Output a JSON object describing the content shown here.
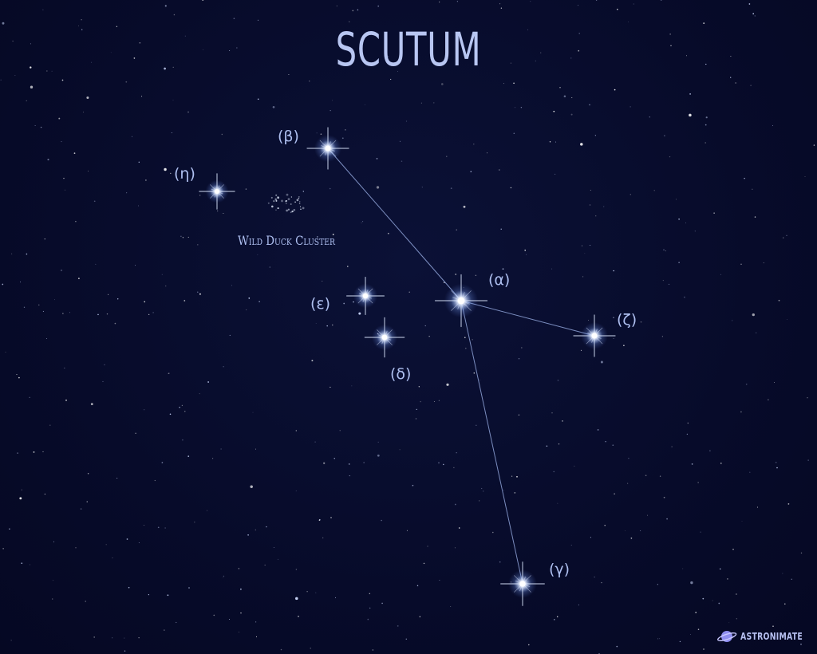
{
  "title": "SCUTUM",
  "stars": [
    {
      "id": "alpha",
      "label": "(α)"
    },
    {
      "id": "beta",
      "label": "(β)"
    },
    {
      "id": "gamma",
      "label": "(γ)"
    },
    {
      "id": "delta",
      "label": "(δ)"
    },
    {
      "id": "epsilon",
      "label": "(ε)"
    },
    {
      "id": "zeta",
      "label": "(ζ)"
    },
    {
      "id": "eta",
      "label": "(η)"
    }
  ],
  "cluster_label": "Wild Duck Cluster",
  "brand": {
    "name": "ASTRONIMATE",
    "icon": "planet-icon"
  },
  "colors": {
    "background": "#070b2a",
    "text": "#aebff0",
    "line": "#8fa3d8",
    "star": "#ffffff",
    "glow": "#9fc0ff"
  }
}
